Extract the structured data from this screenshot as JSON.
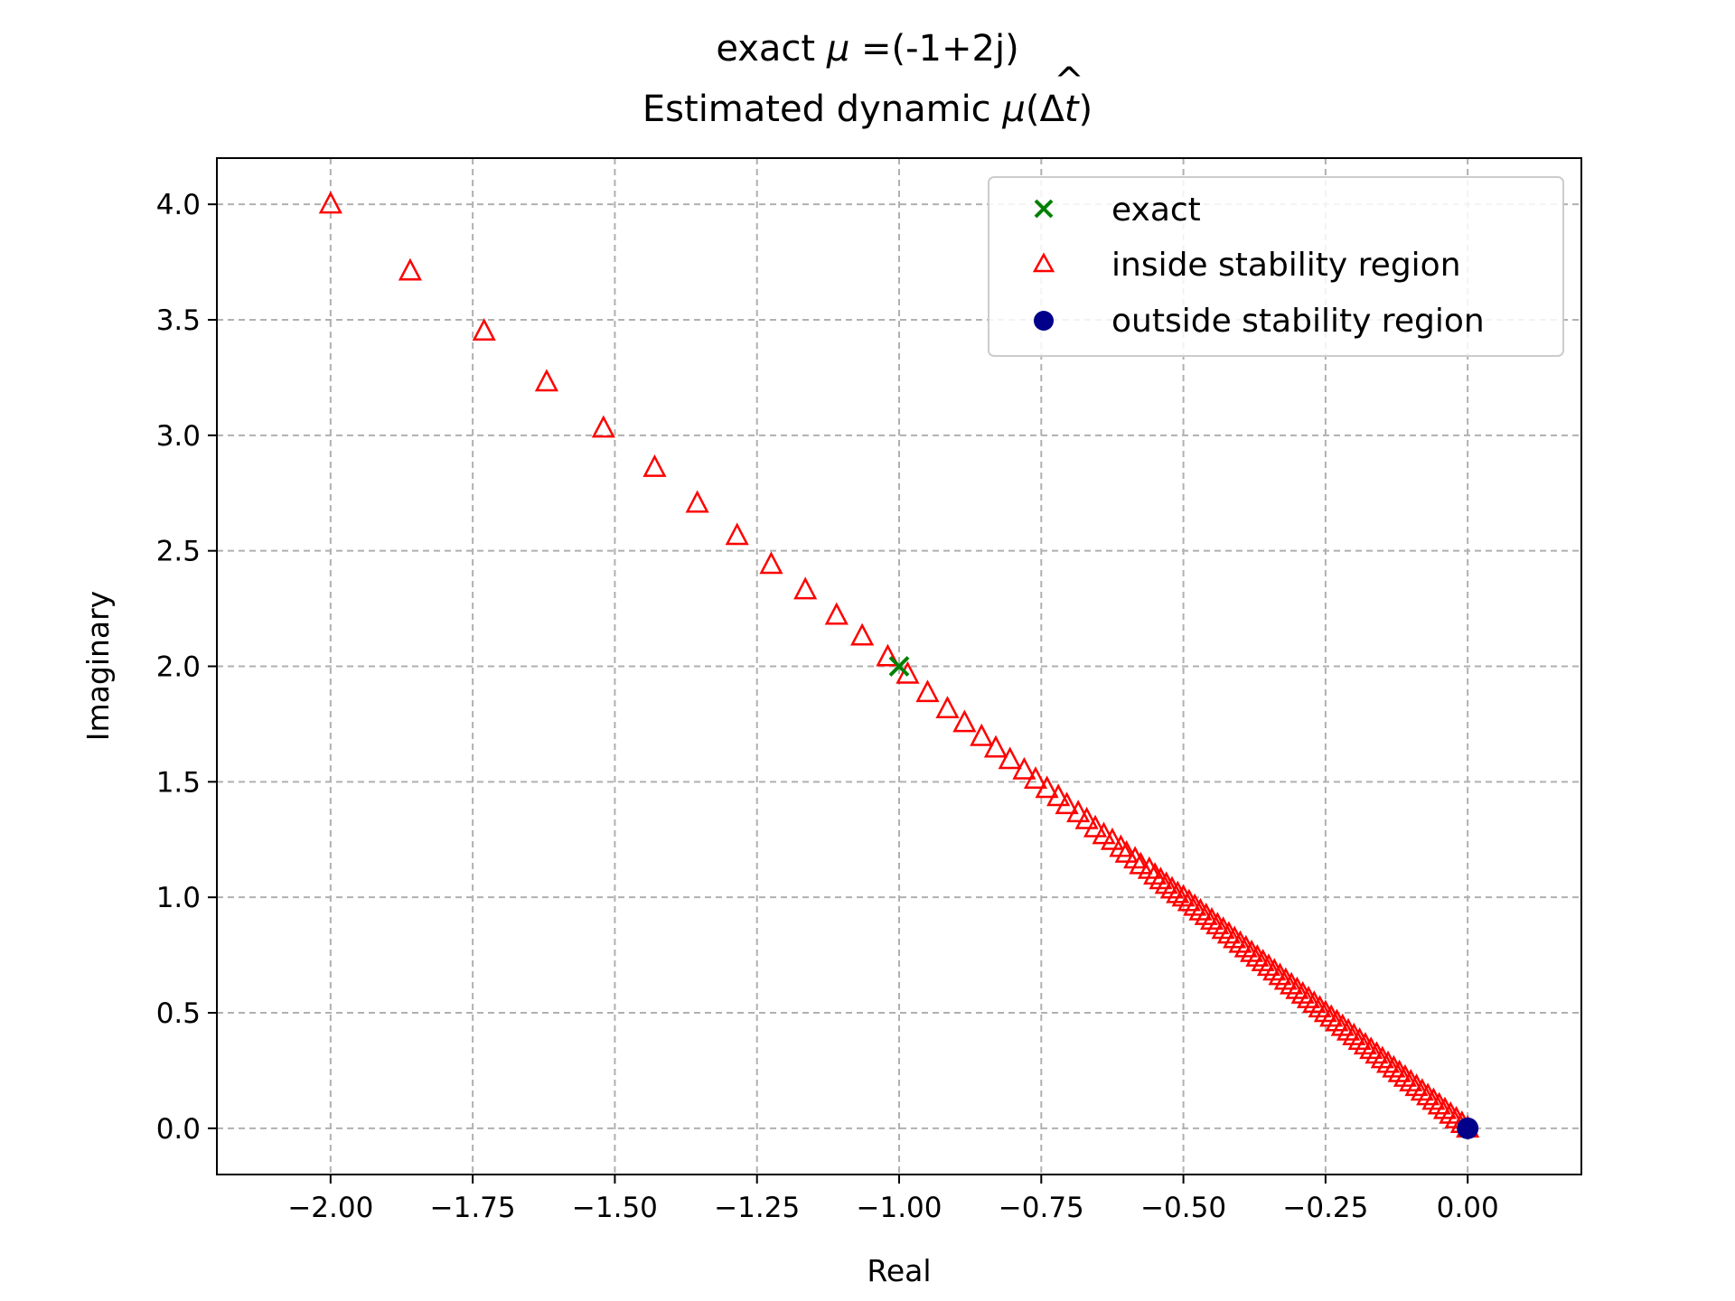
{
  "chart_data": {
    "type": "scatter",
    "title_line1_prefix": "exact ",
    "title_line1_symbol": "μ",
    "title_line1_suffix": " =(-1+2j)",
    "title_line2_prefix": "Estimated dynamic ",
    "title_line2_hat": "^",
    "title_line2_symbol": "μ",
    "title_line2_paren_open": "(Δ",
    "title_line2_var": "t",
    "title_line2_paren_close": ")",
    "xlabel": "Real",
    "ylabel": "Imaginary",
    "xlim": [
      -2.2,
      0.2
    ],
    "ylim": [
      -0.2,
      4.2
    ],
    "xticks": [
      -2.0,
      -1.75,
      -1.5,
      -1.25,
      -1.0,
      -0.75,
      -0.5,
      -0.25,
      0.0
    ],
    "xtick_labels": [
      "−2.00",
      "−1.75",
      "−1.50",
      "−1.25",
      "−1.00",
      "−0.75",
      "−0.50",
      "−0.25",
      "0.00"
    ],
    "yticks": [
      0.0,
      0.5,
      1.0,
      1.5,
      2.0,
      2.5,
      3.0,
      3.5,
      4.0
    ],
    "ytick_labels": [
      "0.0",
      "0.5",
      "1.0",
      "1.5",
      "2.0",
      "2.5",
      "3.0",
      "3.5",
      "4.0"
    ],
    "grid": true,
    "legend_position": "top-right",
    "series": [
      {
        "name": "exact",
        "marker": "x",
        "color": "#008000",
        "points": [
          [
            -1.0,
            2.0
          ]
        ]
      },
      {
        "name": "inside stability region",
        "marker": "triangle-open",
        "color": "#ff0000",
        "points": [
          [
            -2.0,
            4.0
          ],
          [
            -1.86,
            3.71
          ],
          [
            -1.73,
            3.45
          ],
          [
            -1.62,
            3.23
          ],
          [
            -1.52,
            3.03
          ],
          [
            -1.43,
            2.86
          ],
          [
            -1.355,
            2.705
          ],
          [
            -1.285,
            2.565
          ],
          [
            -1.225,
            2.44
          ],
          [
            -1.165,
            2.33
          ],
          [
            -1.11,
            2.22
          ],
          [
            -1.065,
            2.13
          ],
          [
            -1.02,
            2.04
          ],
          [
            -0.985,
            1.965
          ],
          [
            -0.95,
            1.885
          ],
          [
            -0.915,
            1.815
          ],
          [
            -0.885,
            1.755
          ],
          [
            -0.855,
            1.695
          ],
          [
            -0.83,
            1.645
          ],
          [
            -0.805,
            1.595
          ],
          [
            -0.78,
            1.55
          ],
          [
            -0.76,
            1.51
          ],
          [
            -0.74,
            1.47
          ],
          [
            -0.72,
            1.435
          ],
          [
            -0.705,
            1.4
          ],
          [
            -0.685,
            1.365
          ],
          [
            -0.67,
            1.335
          ],
          [
            -0.655,
            1.3
          ],
          [
            -0.64,
            1.27
          ],
          [
            -0.625,
            1.245
          ],
          [
            -0.61,
            1.215
          ],
          [
            -0.6,
            1.19
          ],
          [
            -0.585,
            1.165
          ],
          [
            -0.575,
            1.14
          ],
          [
            -0.56,
            1.12
          ],
          [
            -0.55,
            1.095
          ],
          [
            -0.54,
            1.075
          ],
          [
            -0.53,
            1.055
          ],
          [
            -0.52,
            1.035
          ],
          [
            -0.51,
            1.015
          ],
          [
            -0.5,
            1.0
          ],
          [
            -0.49,
            0.98
          ],
          [
            -0.48,
            0.96
          ],
          [
            -0.47,
            0.94
          ],
          [
            -0.46,
            0.92
          ],
          [
            -0.45,
            0.9
          ],
          [
            -0.44,
            0.88
          ],
          [
            -0.43,
            0.86
          ],
          [
            -0.42,
            0.84
          ],
          [
            -0.41,
            0.82
          ],
          [
            -0.4,
            0.8
          ],
          [
            -0.39,
            0.78
          ],
          [
            -0.38,
            0.76
          ],
          [
            -0.37,
            0.74
          ],
          [
            -0.36,
            0.72
          ],
          [
            -0.35,
            0.7
          ],
          [
            -0.34,
            0.68
          ],
          [
            -0.33,
            0.66
          ],
          [
            -0.32,
            0.64
          ],
          [
            -0.31,
            0.62
          ],
          [
            -0.3,
            0.6
          ],
          [
            -0.29,
            0.58
          ],
          [
            -0.28,
            0.56
          ],
          [
            -0.27,
            0.54
          ],
          [
            -0.26,
            0.52
          ],
          [
            -0.25,
            0.5
          ],
          [
            -0.24,
            0.48
          ],
          [
            -0.23,
            0.46
          ],
          [
            -0.22,
            0.44
          ],
          [
            -0.21,
            0.42
          ],
          [
            -0.2,
            0.4
          ],
          [
            -0.19,
            0.38
          ],
          [
            -0.18,
            0.36
          ],
          [
            -0.17,
            0.34
          ],
          [
            -0.16,
            0.32
          ],
          [
            -0.15,
            0.3
          ],
          [
            -0.14,
            0.28
          ],
          [
            -0.13,
            0.26
          ],
          [
            -0.12,
            0.24
          ],
          [
            -0.11,
            0.22
          ],
          [
            -0.1,
            0.2
          ],
          [
            -0.09,
            0.18
          ],
          [
            -0.08,
            0.16
          ],
          [
            -0.07,
            0.14
          ],
          [
            -0.06,
            0.12
          ],
          [
            -0.05,
            0.1
          ],
          [
            -0.04,
            0.08
          ],
          [
            -0.03,
            0.06
          ],
          [
            -0.02,
            0.04
          ],
          [
            -0.01,
            0.02
          ],
          [
            0.0,
            0.0
          ]
        ]
      },
      {
        "name": "outside stability region",
        "marker": "circle",
        "color": "#00008b",
        "points": [
          [
            0.0,
            0.0
          ]
        ]
      }
    ]
  }
}
